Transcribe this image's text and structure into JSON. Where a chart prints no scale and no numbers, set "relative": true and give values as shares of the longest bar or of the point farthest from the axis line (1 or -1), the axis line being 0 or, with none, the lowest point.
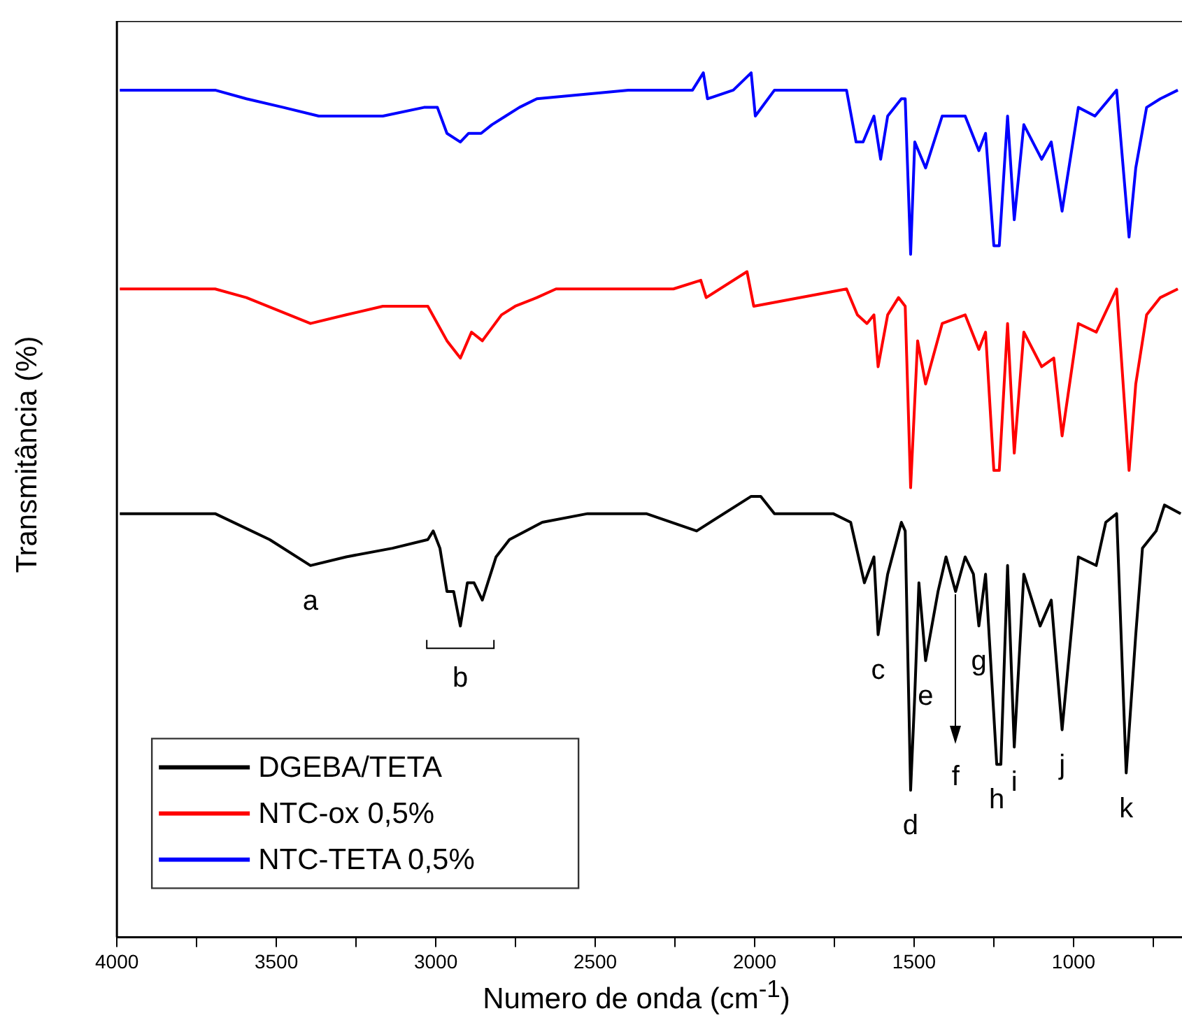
{
  "chart_data": {
    "type": "line",
    "relative": true,
    "xlabel": "Numero de onda (cm$^{-1}$)",
    "ylabel": "Transmitância (%)",
    "xlim": [
      4000,
      660
    ],
    "xticks": [
      4000,
      {
        "value": 3750,
        "label": null
      },
      3500,
      {
        "value": 3250,
        "label": null
      },
      3000,
      {
        "value": 2750,
        "label": null
      },
      2500,
      {
        "value": 2250,
        "label": null
      },
      2000,
      {
        "value": 1750,
        "label": null
      },
      1500,
      {
        "value": 1250,
        "label": null
      },
      1000,
      {
        "value": 750,
        "label": null
      }
    ],
    "legend": "bottom left",
    "line_style": "solid",
    "series": [
      {
        "name": "DGEBA/TETA",
        "color": "#000000",
        "x": [
          3991,
          3692,
          3521,
          3393,
          3281,
          3136,
          3025,
          3008,
          2987,
          2965,
          2944,
          2923,
          2901,
          2880,
          2854,
          2837,
          2811,
          2769,
          2666,
          2524,
          2340,
          2182,
          2011,
          1981,
          1938,
          1754,
          1699,
          1656,
          1626,
          1613,
          1583,
          1540,
          1528,
          1511,
          1498,
          1485,
          1464,
          1425,
          1400,
          1370,
          1340,
          1314,
          1297,
          1276,
          1241,
          1228,
          1207,
          1186,
          1156,
          1105,
          1070,
          1036,
          985,
          929,
          899,
          865,
          835,
          805,
          784,
          741,
          715,
          664
        ],
        "values": [
          0.49,
          0.49,
          0.46,
          0.43,
          0.44,
          0.45,
          0.46,
          0.47,
          0.45,
          0.4,
          0.4,
          0.36,
          0.41,
          0.41,
          0.39,
          0.41,
          0.44,
          0.46,
          0.48,
          0.49,
          0.49,
          0.47,
          0.51,
          0.51,
          0.49,
          0.49,
          0.48,
          0.41,
          0.44,
          0.35,
          0.42,
          0.48,
          0.47,
          0.17,
          0.28,
          0.41,
          0.32,
          0.4,
          0.44,
          0.4,
          0.44,
          0.42,
          0.36,
          0.42,
          0.2,
          0.2,
          0.43,
          0.22,
          0.42,
          0.36,
          0.39,
          0.24,
          0.44,
          0.43,
          0.48,
          0.49,
          0.19,
          0.35,
          0.45,
          0.47,
          0.5,
          0.49
        ]
      },
      {
        "name": "NTC-ox 0,5%",
        "color": "#ff0000",
        "x": [
          3991,
          3692,
          3594,
          3393,
          3281,
          3166,
          3025,
          2965,
          2923,
          2888,
          2854,
          2794,
          2751,
          2683,
          2623,
          2255,
          2169,
          2152,
          2024,
          2003,
          1712,
          1678,
          1648,
          1626,
          1613,
          1583,
          1549,
          1528,
          1511,
          1489,
          1464,
          1412,
          1340,
          1297,
          1276,
          1250,
          1233,
          1207,
          1186,
          1156,
          1100,
          1062,
          1036,
          985,
          929,
          865,
          826,
          805,
          771,
          728,
          673
        ],
        "values": [
          0.75,
          0.75,
          0.74,
          0.71,
          0.72,
          0.73,
          0.73,
          0.69,
          0.67,
          0.7,
          0.69,
          0.72,
          0.73,
          0.74,
          0.75,
          0.75,
          0.76,
          0.74,
          0.77,
          0.73,
          0.75,
          0.72,
          0.71,
          0.72,
          0.66,
          0.72,
          0.74,
          0.73,
          0.52,
          0.69,
          0.64,
          0.71,
          0.72,
          0.68,
          0.7,
          0.54,
          0.54,
          0.71,
          0.56,
          0.7,
          0.66,
          0.67,
          0.58,
          0.71,
          0.7,
          0.75,
          0.54,
          0.64,
          0.72,
          0.74,
          0.75
        ]
      },
      {
        "name": "NTC-TETA 0,5%",
        "color": "#0000ff",
        "x": [
          3991,
          3692,
          3594,
          3478,
          3367,
          3281,
          3166,
          3037,
          2995,
          2965,
          2923,
          2897,
          2858,
          2824,
          2781,
          2738,
          2683,
          2396,
          2366,
          2195,
          2161,
          2148,
          2067,
          2011,
          1998,
          1938,
          1712,
          1682,
          1660,
          1626,
          1605,
          1583,
          1540,
          1528,
          1511,
          1498,
          1464,
          1412,
          1340,
          1297,
          1276,
          1250,
          1233,
          1207,
          1186,
          1156,
          1100,
          1070,
          1036,
          985,
          933,
          865,
          826,
          805,
          771,
          728,
          673
        ],
        "values": [
          0.98,
          0.98,
          0.97,
          0.96,
          0.95,
          0.95,
          0.95,
          0.96,
          0.96,
          0.93,
          0.92,
          0.93,
          0.93,
          0.94,
          0.95,
          0.96,
          0.97,
          0.98,
          0.98,
          0.98,
          1.0,
          0.97,
          0.98,
          1.0,
          0.95,
          0.98,
          0.98,
          0.92,
          0.92,
          0.95,
          0.9,
          0.95,
          0.97,
          0.97,
          0.79,
          0.92,
          0.89,
          0.95,
          0.95,
          0.91,
          0.93,
          0.8,
          0.8,
          0.95,
          0.83,
          0.94,
          0.9,
          0.92,
          0.84,
          0.96,
          0.95,
          0.98,
          0.81,
          0.89,
          0.96,
          0.97,
          0.98
        ]
      }
    ],
    "annotations": [
      {
        "text": "a",
        "x": 3393,
        "y": 0.43
      },
      {
        "text": "b",
        "x": 2923,
        "y": 0.36
      },
      {
        "text": "c",
        "x": 1613,
        "y": 0.35
      },
      {
        "text": "d",
        "x": 1511,
        "y": 0.17
      },
      {
        "text": "e",
        "x": 1464,
        "y": 0.32
      },
      {
        "text": "f",
        "x": 1370,
        "y": 0.4
      },
      {
        "text": "g",
        "x": 1297,
        "y": 0.36
      },
      {
        "text": "h",
        "x": 1241,
        "y": 0.2
      },
      {
        "text": "i",
        "x": 1186,
        "y": 0.22
      },
      {
        "text": "j",
        "x": 1036,
        "y": 0.24
      },
      {
        "text": "k",
        "x": 835,
        "y": 0.19
      }
    ]
  }
}
